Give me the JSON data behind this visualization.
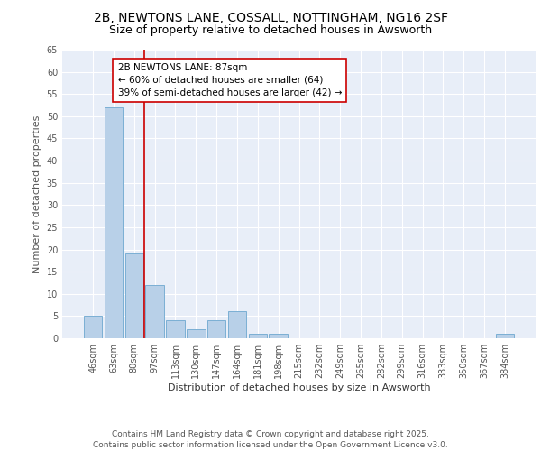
{
  "title_line1": "2B, NEWTONS LANE, COSSALL, NOTTINGHAM, NG16 2SF",
  "title_line2": "Size of property relative to detached houses in Awsworth",
  "xlabel": "Distribution of detached houses by size in Awsworth",
  "ylabel": "Number of detached properties",
  "categories": [
    "46sqm",
    "63sqm",
    "80sqm",
    "97sqm",
    "113sqm",
    "130sqm",
    "147sqm",
    "164sqm",
    "181sqm",
    "198sqm",
    "215sqm",
    "232sqm",
    "249sqm",
    "265sqm",
    "282sqm",
    "299sqm",
    "316sqm",
    "333sqm",
    "350sqm",
    "367sqm",
    "384sqm"
  ],
  "values": [
    5,
    52,
    19,
    12,
    4,
    2,
    4,
    6,
    1,
    1,
    0,
    0,
    0,
    0,
    0,
    0,
    0,
    0,
    0,
    0,
    1
  ],
  "bar_color": "#b8d0e8",
  "bar_edge_color": "#7bafd4",
  "vline_color": "#cc0000",
  "annotation_box_text": "2B NEWTONS LANE: 87sqm\n← 60% of detached houses are smaller (64)\n39% of semi-detached houses are larger (42) →",
  "annotation_box_color": "#cc0000",
  "annotation_box_facecolor": "white",
  "ylim": [
    0,
    65
  ],
  "yticks": [
    0,
    5,
    10,
    15,
    20,
    25,
    30,
    35,
    40,
    45,
    50,
    55,
    60,
    65
  ],
  "bg_color": "#e8eef8",
  "grid_color": "white",
  "footer_text": "Contains HM Land Registry data © Crown copyright and database right 2025.\nContains public sector information licensed under the Open Government Licence v3.0.",
  "title_fontsize": 10,
  "subtitle_fontsize": 9,
  "axis_label_fontsize": 8,
  "tick_fontsize": 7,
  "annotation_fontsize": 7.5,
  "footer_fontsize": 6.5
}
